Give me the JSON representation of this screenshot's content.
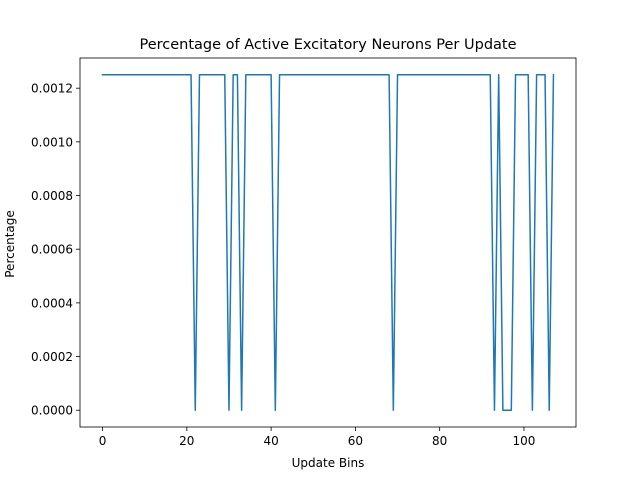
{
  "chart_data": {
    "type": "line",
    "title": "Percentage of Active Excitatory Neurons Per Update",
    "xlabel": "Update Bins",
    "ylabel": "Percentage",
    "xlim": [
      -5.35,
      112.35
    ],
    "ylim": [
      -6.25e-05,
      0.0013125
    ],
    "xticks": [
      0,
      20,
      40,
      60,
      80,
      100
    ],
    "xtick_labels": [
      "0",
      "20",
      "40",
      "60",
      "80",
      "100"
    ],
    "yticks": [
      0,
      0.0002,
      0.0004,
      0.0006,
      0.0008,
      0.001,
      0.0012
    ],
    "ytick_labels": [
      "0.0000",
      "0.0002",
      "0.0004",
      "0.0006",
      "0.0008",
      "0.0010",
      "0.0012"
    ],
    "grid": false,
    "series": [
      {
        "color": "#1f77b4",
        "x": [
          0,
          1,
          2,
          3,
          4,
          5,
          6,
          7,
          8,
          9,
          10,
          11,
          12,
          13,
          14,
          15,
          16,
          17,
          18,
          19,
          20,
          21,
          22,
          23,
          24,
          25,
          26,
          27,
          28,
          29,
          30,
          31,
          32,
          33,
          34,
          35,
          36,
          37,
          38,
          39,
          40,
          41,
          42,
          43,
          44,
          45,
          46,
          47,
          48,
          49,
          50,
          51,
          52,
          53,
          54,
          55,
          56,
          57,
          58,
          59,
          60,
          61,
          62,
          63,
          64,
          65,
          66,
          67,
          68,
          69,
          70,
          71,
          72,
          73,
          74,
          75,
          76,
          77,
          78,
          79,
          80,
          81,
          82,
          83,
          84,
          85,
          86,
          87,
          88,
          89,
          90,
          91,
          92,
          93,
          94,
          95,
          96,
          97,
          98,
          99,
          100,
          101,
          102,
          103,
          104,
          105,
          106,
          107
        ],
        "y": [
          0.00125,
          0.00125,
          0.00125,
          0.00125,
          0.00125,
          0.00125,
          0.00125,
          0.00125,
          0.00125,
          0.00125,
          0.00125,
          0.00125,
          0.00125,
          0.00125,
          0.00125,
          0.00125,
          0.00125,
          0.00125,
          0.00125,
          0.00125,
          0.00125,
          0.00125,
          0,
          0.00125,
          0.00125,
          0.00125,
          0.00125,
          0.00125,
          0.00125,
          0.00125,
          0,
          0.00125,
          0.00125,
          0,
          0.00125,
          0.00125,
          0.00125,
          0.00125,
          0.00125,
          0.00125,
          0.00125,
          0,
          0.00125,
          0.00125,
          0.00125,
          0.00125,
          0.00125,
          0.00125,
          0.00125,
          0.00125,
          0.00125,
          0.00125,
          0.00125,
          0.00125,
          0.00125,
          0.00125,
          0.00125,
          0.00125,
          0.00125,
          0.00125,
          0.00125,
          0.00125,
          0.00125,
          0.00125,
          0.00125,
          0.00125,
          0.00125,
          0.00125,
          0.00125,
          0,
          0.00125,
          0.00125,
          0.00125,
          0.00125,
          0.00125,
          0.00125,
          0.00125,
          0.00125,
          0.00125,
          0.00125,
          0.00125,
          0.00125,
          0.00125,
          0.00125,
          0.00125,
          0.00125,
          0.00125,
          0.00125,
          0.00125,
          0.00125,
          0.00125,
          0.00125,
          0.00125,
          0,
          0.00125,
          0,
          0,
          0,
          0.00125,
          0.00125,
          0.00125,
          0.00125,
          0,
          0.00125,
          0.00125,
          0.00125,
          0,
          0.00125
        ]
      }
    ]
  }
}
